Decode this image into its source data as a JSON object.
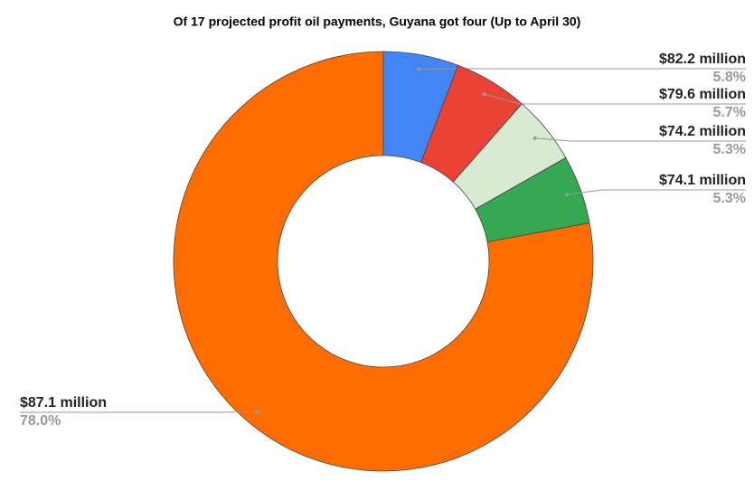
{
  "chart_data": {
    "type": "donut",
    "title": "Of 17 projected profit oil payments, Guyana got four (Up to April 30)",
    "categories": [
      "$82.2 million",
      "$79.6 million",
      "$74.2 million",
      "$74.1 million",
      "$87.1 million"
    ],
    "values": [
      5.8,
      5.7,
      5.3,
      5.3,
      78.0
    ],
    "value_labels": [
      "5.8%",
      "5.7%",
      "5.3%",
      "5.3%",
      "78.0%"
    ],
    "colors": [
      "#4285f4",
      "#ea4335",
      "#d9ead3",
      "#34a853",
      "#ff6d01"
    ]
  }
}
